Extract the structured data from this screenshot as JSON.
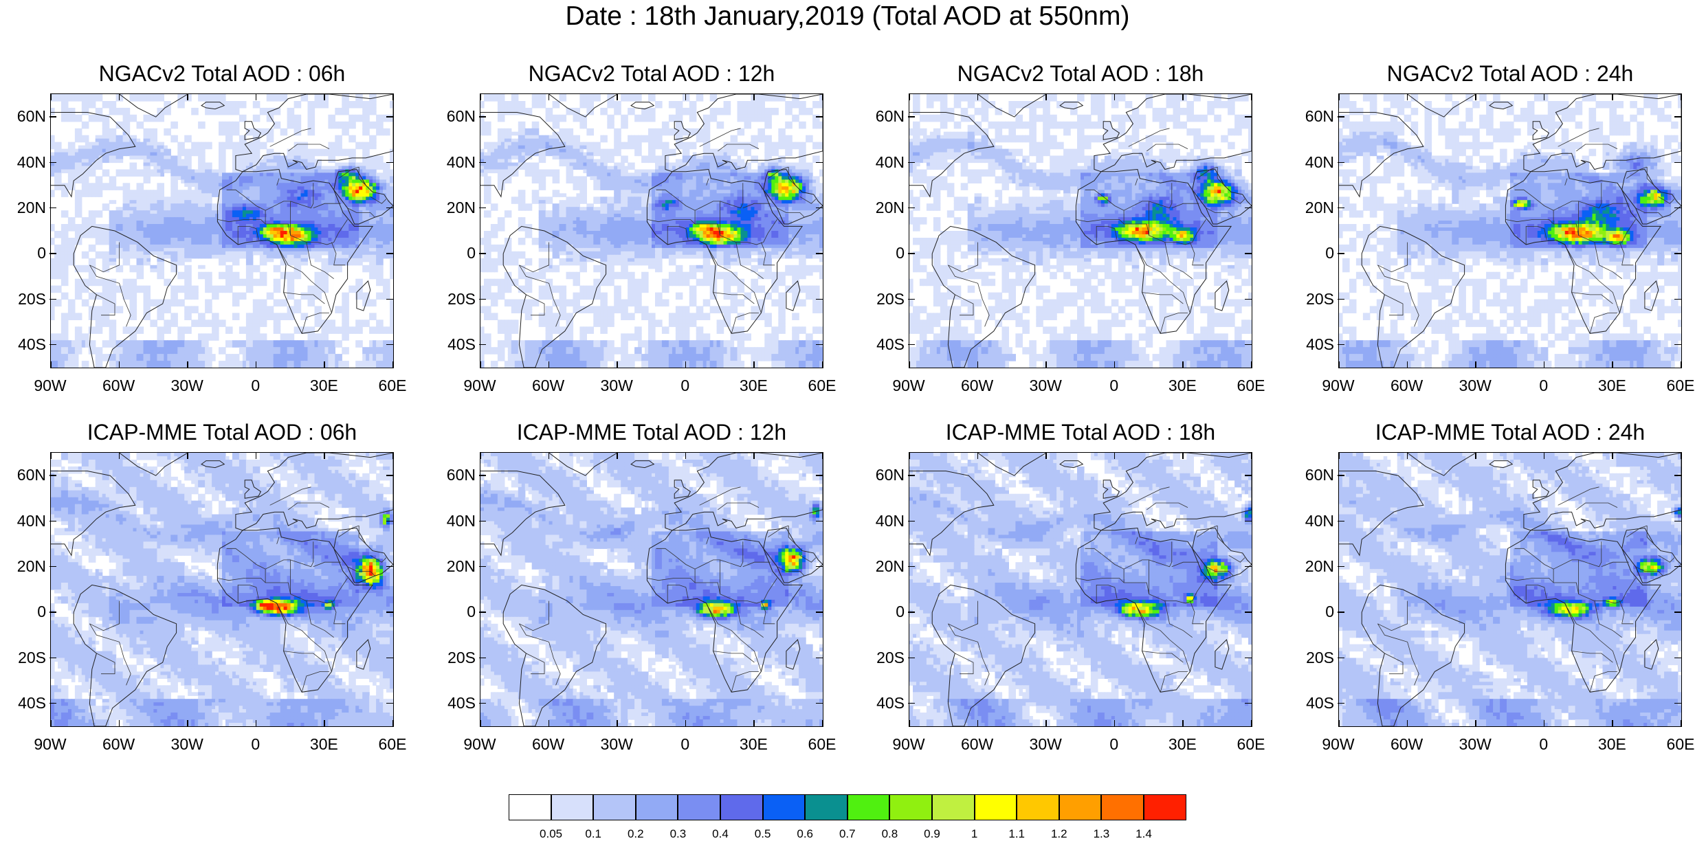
{
  "title": "Date : 18th January,2019 (Total AOD at 550nm)",
  "lat_labels": [
    "60N",
    "40N",
    "20N",
    "0",
    "20S",
    "40S"
  ],
  "lon_labels": [
    "90W",
    "60W",
    "30W",
    "0",
    "30E",
    "60E"
  ],
  "map_extent": {
    "lon": [
      -90,
      60
    ],
    "lat": [
      -50,
      70
    ]
  },
  "panels": [
    {
      "title": "NGACv2 Total AOD : 06h",
      "model": "NGACv2",
      "forecast_hour": "06h"
    },
    {
      "title": "NGACv2 Total AOD : 12h",
      "model": "NGACv2",
      "forecast_hour": "12h"
    },
    {
      "title": "NGACv2 Total AOD : 18h",
      "model": "NGACv2",
      "forecast_hour": "18h"
    },
    {
      "title": "NGACv2 Total AOD : 24h",
      "model": "NGACv2",
      "forecast_hour": "24h"
    },
    {
      "title": "ICAP-MME Total AOD : 06h",
      "model": "ICAP-MME",
      "forecast_hour": "06h"
    },
    {
      "title": "ICAP-MME Total AOD : 12h",
      "model": "ICAP-MME",
      "forecast_hour": "12h"
    },
    {
      "title": "ICAP-MME Total AOD : 18h",
      "model": "ICAP-MME",
      "forecast_hour": "18h"
    },
    {
      "title": "ICAP-MME Total AOD : 24h",
      "model": "ICAP-MME",
      "forecast_hour": "24h"
    }
  ],
  "colorbar": {
    "labels": [
      "0.05",
      "0.1",
      "0.2",
      "0.3",
      "0.4",
      "0.5",
      "0.6",
      "0.7",
      "0.8",
      "0.9",
      "1",
      "1.1",
      "1.2",
      "1.3",
      "1.4"
    ],
    "colors": [
      "#ffffff",
      "#d7e0fb",
      "#b4c5f8",
      "#92aaf5",
      "#7a8ef2",
      "#5f6aeb",
      "#0a60f5",
      "#0a9090",
      "#50f010",
      "#90f010",
      "#c0f040",
      "#ffff00",
      "#ffc800",
      "#ff9f00",
      "#ff7000",
      "#ff2000"
    ]
  }
}
